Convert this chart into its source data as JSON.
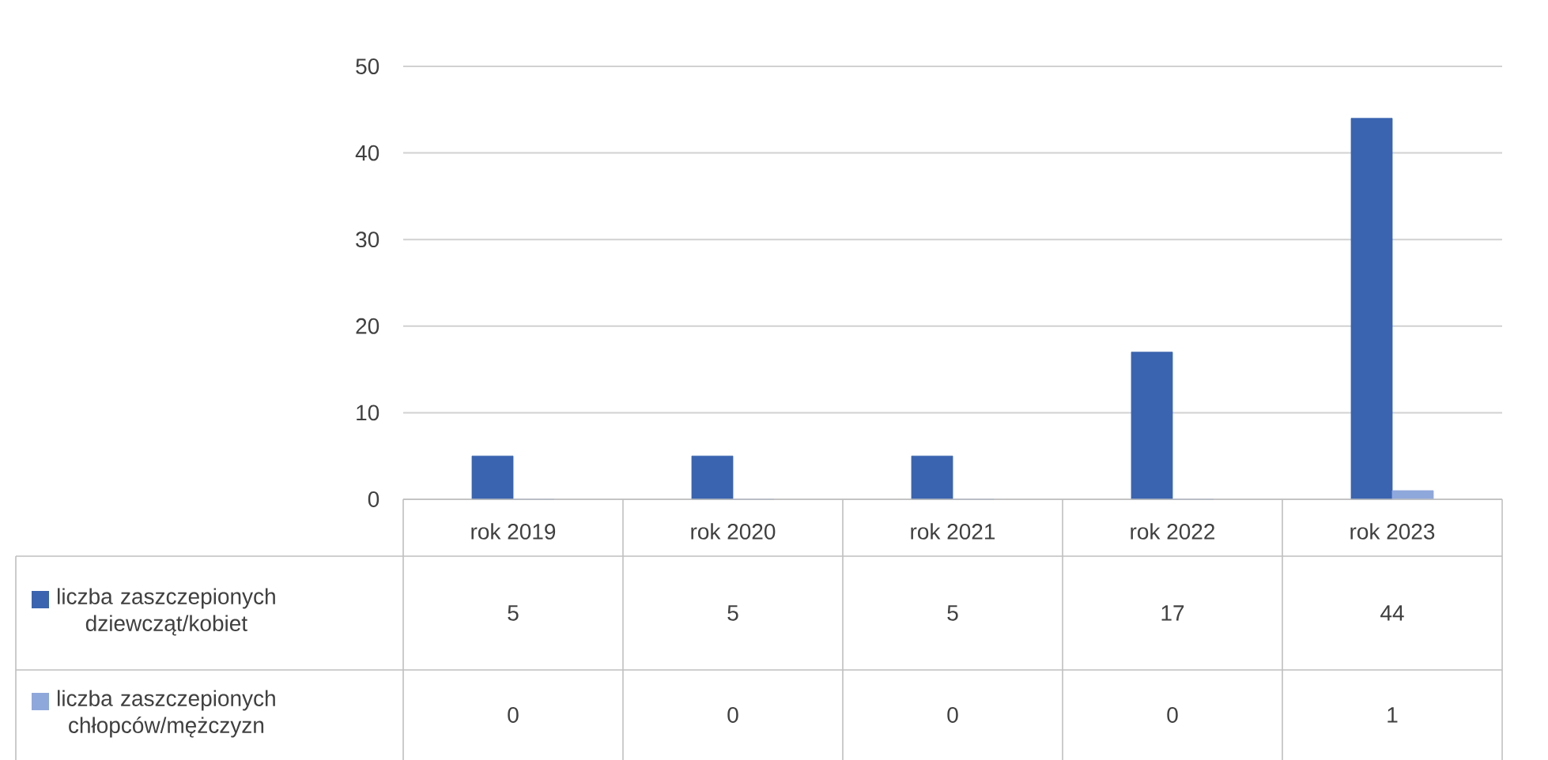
{
  "chart_data": {
    "type": "bar",
    "categories": [
      "rok 2019",
      "rok 2020",
      "rok 2021",
      "rok 2022",
      "rok 2023"
    ],
    "series": [
      {
        "name": "liczba zaszczepionych dziewcząt/kobiet",
        "color": "#3a64b0",
        "values": [
          5,
          5,
          5,
          17,
          44
        ]
      },
      {
        "name": "liczba zaszczepionych chłopców/mężczyzn",
        "color": "#8fa8dc",
        "values": [
          0,
          0,
          0,
          0,
          1
        ]
      }
    ],
    "ylim": [
      0,
      50
    ],
    "yticks": [
      0,
      10,
      20,
      30,
      40,
      50
    ],
    "grid": "y",
    "data_labels": true,
    "legend": "bottom left"
  }
}
